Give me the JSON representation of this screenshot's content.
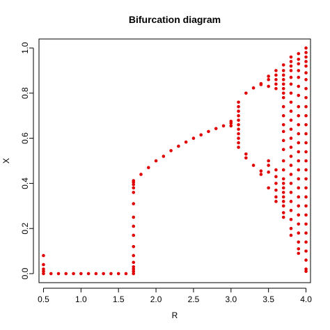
{
  "chart_data": {
    "type": "scatter",
    "title": "Bifurcation diagram",
    "xlabel": "R",
    "ylabel": "X",
    "xlim": [
      0.44,
      4.06
    ],
    "ylim": [
      -0.04,
      1.04
    ],
    "xticks": [
      0.5,
      1.0,
      1.5,
      2.0,
      2.5,
      3.0,
      3.5,
      4.0
    ],
    "xtick_labels": [
      "0.5",
      "1.0",
      "1.5",
      "2.0",
      "2.5",
      "3.0",
      "3.5",
      "4.0"
    ],
    "yticks": [
      0.0,
      0.2,
      0.4,
      0.6,
      0.8,
      1.0
    ],
    "ytick_labels": [
      "0.0",
      "0.2",
      "0.4",
      "0.6",
      "0.8",
      "1.0"
    ],
    "marker_color": "#e00000",
    "grid": false,
    "legend": "none",
    "series": [
      {
        "points": [
          [
            0.5,
            0.08
          ],
          [
            0.5,
            0.04
          ],
          [
            0.5,
            0.02
          ],
          [
            0.5,
            0.01
          ],
          [
            0.5,
            0.0
          ],
          [
            0.6,
            0.0
          ],
          [
            0.7,
            0.0
          ],
          [
            0.8,
            0.0
          ],
          [
            0.9,
            0.0
          ],
          [
            1.0,
            0.0
          ],
          [
            1.1,
            0.0
          ],
          [
            1.2,
            0.0
          ],
          [
            1.3,
            0.0
          ],
          [
            1.4,
            0.0
          ],
          [
            1.5,
            0.0
          ],
          [
            1.6,
            0.0
          ],
          [
            1.7,
            0.0
          ],
          [
            1.7,
            0.01
          ],
          [
            1.7,
            0.02
          ],
          [
            1.7,
            0.03
          ],
          [
            1.7,
            0.05
          ],
          [
            1.7,
            0.08
          ],
          [
            1.7,
            0.12
          ],
          [
            1.7,
            0.17
          ],
          [
            1.7,
            0.21
          ],
          [
            1.7,
            0.25
          ],
          [
            1.7,
            0.31
          ],
          [
            1.7,
            0.36
          ],
          [
            1.7,
            0.38
          ],
          [
            1.7,
            0.395
          ],
          [
            1.7,
            0.405
          ],
          [
            1.7,
            0.412
          ],
          [
            1.8,
            0.44
          ],
          [
            1.9,
            0.47
          ],
          [
            2.0,
            0.5
          ],
          [
            2.1,
            0.52
          ],
          [
            2.2,
            0.545
          ],
          [
            2.3,
            0.565
          ],
          [
            2.4,
            0.583
          ],
          [
            2.5,
            0.6
          ],
          [
            2.6,
            0.615
          ],
          [
            2.7,
            0.63
          ],
          [
            2.8,
            0.643
          ],
          [
            2.9,
            0.655
          ],
          [
            3.0,
            0.667
          ],
          [
            3.0,
            0.655
          ],
          [
            3.0,
            0.675
          ],
          [
            3.1,
            0.76
          ],
          [
            3.1,
            0.74
          ],
          [
            3.1,
            0.72
          ],
          [
            3.1,
            0.7
          ],
          [
            3.1,
            0.68
          ],
          [
            3.1,
            0.66
          ],
          [
            3.1,
            0.64
          ],
          [
            3.1,
            0.62
          ],
          [
            3.1,
            0.6
          ],
          [
            3.1,
            0.58
          ],
          [
            3.1,
            0.56
          ],
          [
            3.2,
            0.8
          ],
          [
            3.2,
            0.513
          ],
          [
            3.2,
            0.53
          ],
          [
            3.3,
            0.823
          ],
          [
            3.3,
            0.48
          ],
          [
            3.4,
            0.842
          ],
          [
            3.4,
            0.838
          ],
          [
            3.4,
            0.455
          ],
          [
            3.4,
            0.44
          ],
          [
            3.5,
            0.875
          ],
          [
            3.5,
            0.86
          ],
          [
            3.5,
            0.83
          ],
          [
            3.5,
            0.5
          ],
          [
            3.5,
            0.48
          ],
          [
            3.5,
            0.45
          ],
          [
            3.5,
            0.38
          ],
          [
            3.6,
            0.9
          ],
          [
            3.6,
            0.88
          ],
          [
            3.6,
            0.86
          ],
          [
            3.6,
            0.84
          ],
          [
            3.6,
            0.82
          ],
          [
            3.6,
            0.46
          ],
          [
            3.6,
            0.43
          ],
          [
            3.6,
            0.4
          ],
          [
            3.6,
            0.37
          ],
          [
            3.6,
            0.34
          ],
          [
            3.6,
            0.32
          ],
          [
            3.7,
            0.925
          ],
          [
            3.7,
            0.9
          ],
          [
            3.7,
            0.88
          ],
          [
            3.7,
            0.86
          ],
          [
            3.7,
            0.84
          ],
          [
            3.7,
            0.82
          ],
          [
            3.7,
            0.8
          ],
          [
            3.7,
            0.78
          ],
          [
            3.7,
            0.74
          ],
          [
            3.7,
            0.7
          ],
          [
            3.7,
            0.66
          ],
          [
            3.7,
            0.63
          ],
          [
            3.7,
            0.59
          ],
          [
            3.7,
            0.55
          ],
          [
            3.7,
            0.5
          ],
          [
            3.7,
            0.46
          ],
          [
            3.7,
            0.42
          ],
          [
            3.7,
            0.4
          ],
          [
            3.7,
            0.38
          ],
          [
            3.7,
            0.36
          ],
          [
            3.7,
            0.34
          ],
          [
            3.7,
            0.32
          ],
          [
            3.7,
            0.3
          ],
          [
            3.7,
            0.27
          ],
          [
            3.7,
            0.25
          ],
          [
            3.8,
            0.96
          ],
          [
            3.8,
            0.94
          ],
          [
            3.8,
            0.92
          ],
          [
            3.8,
            0.9
          ],
          [
            3.8,
            0.87
          ],
          [
            3.8,
            0.84
          ],
          [
            3.8,
            0.8
          ],
          [
            3.8,
            0.76
          ],
          [
            3.8,
            0.72
          ],
          [
            3.8,
            0.68
          ],
          [
            3.8,
            0.64
          ],
          [
            3.8,
            0.6
          ],
          [
            3.8,
            0.56
          ],
          [
            3.8,
            0.52
          ],
          [
            3.8,
            0.48
          ],
          [
            3.8,
            0.44
          ],
          [
            3.8,
            0.4
          ],
          [
            3.8,
            0.36
          ],
          [
            3.8,
            0.32
          ],
          [
            3.8,
            0.28
          ],
          [
            3.8,
            0.24
          ],
          [
            3.8,
            0.2
          ],
          [
            3.8,
            0.17
          ],
          [
            3.9,
            0.975
          ],
          [
            3.9,
            0.95
          ],
          [
            3.9,
            0.93
          ],
          [
            3.9,
            0.9
          ],
          [
            3.9,
            0.87
          ],
          [
            3.9,
            0.83
          ],
          [
            3.9,
            0.79
          ],
          [
            3.9,
            0.74
          ],
          [
            3.9,
            0.7
          ],
          [
            3.9,
            0.66
          ],
          [
            3.9,
            0.62
          ],
          [
            3.9,
            0.58
          ],
          [
            3.9,
            0.54
          ],
          [
            3.9,
            0.5
          ],
          [
            3.9,
            0.46
          ],
          [
            3.9,
            0.42
          ],
          [
            3.9,
            0.38
          ],
          [
            3.9,
            0.34
          ],
          [
            3.9,
            0.3
          ],
          [
            3.9,
            0.26
          ],
          [
            3.9,
            0.22
          ],
          [
            3.9,
            0.18
          ],
          [
            3.9,
            0.14
          ],
          [
            3.9,
            0.11
          ],
          [
            3.9,
            0.09
          ],
          [
            4.0,
            1.0
          ],
          [
            4.0,
            0.98
          ],
          [
            4.0,
            0.96
          ],
          [
            4.0,
            0.94
          ],
          [
            4.0,
            0.92
          ],
          [
            4.0,
            0.89
          ],
          [
            4.0,
            0.86
          ],
          [
            4.0,
            0.82
          ],
          [
            4.0,
            0.78
          ],
          [
            4.0,
            0.74
          ],
          [
            4.0,
            0.7
          ],
          [
            4.0,
            0.66
          ],
          [
            4.0,
            0.62
          ],
          [
            4.0,
            0.58
          ],
          [
            4.0,
            0.54
          ],
          [
            4.0,
            0.5
          ],
          [
            4.0,
            0.46
          ],
          [
            4.0,
            0.42
          ],
          [
            4.0,
            0.38
          ],
          [
            4.0,
            0.34
          ],
          [
            4.0,
            0.3
          ],
          [
            4.0,
            0.26
          ],
          [
            4.0,
            0.22
          ],
          [
            4.0,
            0.18
          ],
          [
            4.0,
            0.14
          ],
          [
            4.0,
            0.1
          ],
          [
            4.0,
            0.06
          ],
          [
            4.0,
            0.02
          ],
          [
            4.0,
            0.01
          ]
        ]
      }
    ]
  }
}
